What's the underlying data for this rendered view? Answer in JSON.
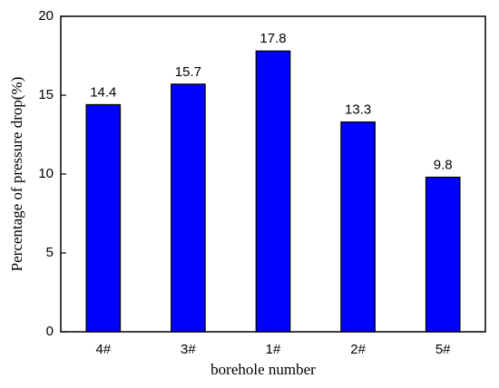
{
  "chart_data": {
    "type": "bar",
    "xlabel": "borehole number",
    "ylabel": "Percentage of pressure drop(%)",
    "categories": [
      "4#",
      "3#",
      "1#",
      "2#",
      "5#"
    ],
    "values": [
      14.4,
      15.7,
      17.8,
      13.3,
      9.8
    ],
    "color": "#0000ff",
    "ylim": [
      0,
      20
    ],
    "yticks": [
      0,
      5,
      10,
      15,
      20
    ],
    "show_value_labels": true
  }
}
